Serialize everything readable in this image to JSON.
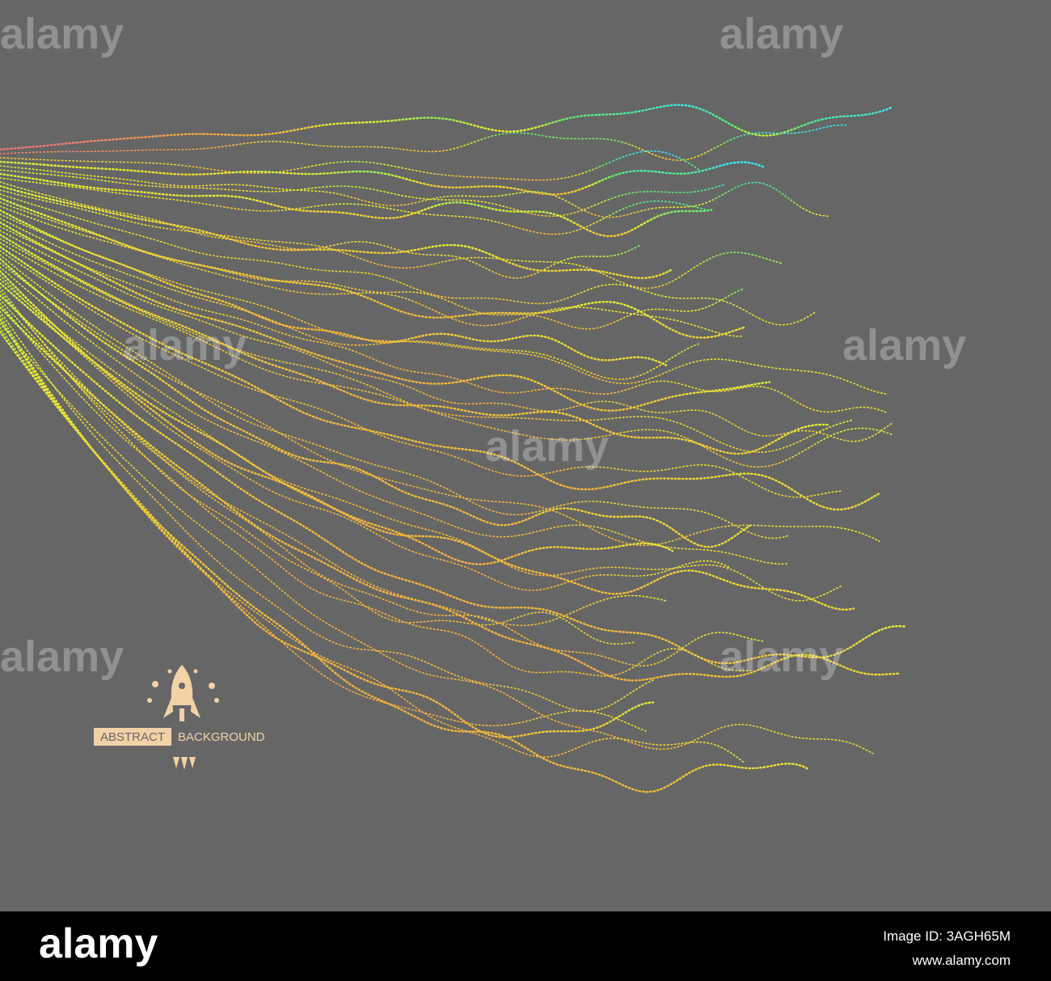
{
  "watermark": "alamy",
  "badge": {
    "left": "ABSTRACT",
    "right": "BACKGROUND"
  },
  "footer": {
    "logo": "alamy",
    "image_id": "Image ID: 3AGH65M",
    "url": "www.alamy.com"
  }
}
